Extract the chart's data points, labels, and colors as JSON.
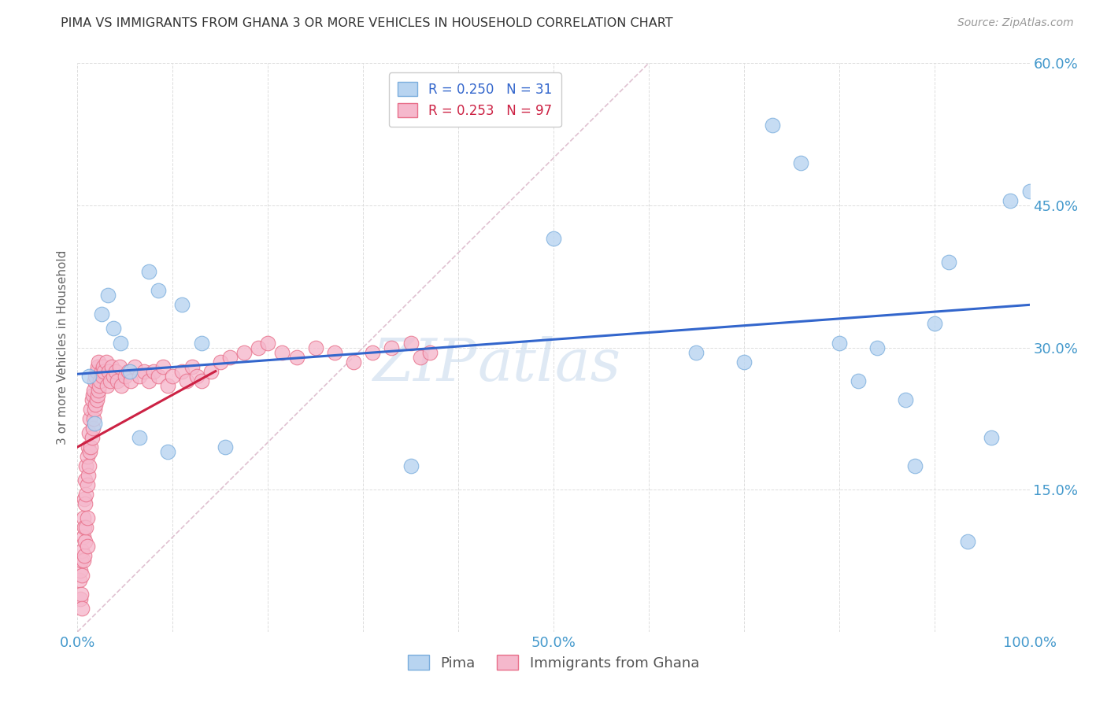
{
  "title": "PIMA VS IMMIGRANTS FROM GHANA 3 OR MORE VEHICLES IN HOUSEHOLD CORRELATION CHART",
  "source": "Source: ZipAtlas.com",
  "ylabel": "3 or more Vehicles in Household",
  "xlim": [
    0.0,
    1.0
  ],
  "ylim": [
    0.0,
    0.6
  ],
  "xticks": [
    0.0,
    0.1,
    0.2,
    0.3,
    0.4,
    0.5,
    0.6,
    0.7,
    0.8,
    0.9,
    1.0
  ],
  "xtick_labels": [
    "0.0%",
    "",
    "",
    "",
    "",
    "50.0%",
    "",
    "",
    "",
    "",
    "100.0%"
  ],
  "yticks": [
    0.0,
    0.15,
    0.3,
    0.45,
    0.6
  ],
  "ytick_labels": [
    "",
    "15.0%",
    "30.0%",
    "45.0%",
    "60.0%"
  ],
  "pima_color": "#b8d4f0",
  "ghana_color": "#f5b8cc",
  "pima_edge_color": "#7baedd",
  "ghana_edge_color": "#e8708a",
  "trendline_pima_color": "#3366cc",
  "trendline_ghana_color": "#cc2244",
  "diagonal_color": "#ddbbcc",
  "grid_color": "#dddddd",
  "tick_label_color": "#4499cc",
  "legend_pima_label": "R = 0.250   N = 31",
  "legend_ghana_label": "R = 0.253   N = 97",
  "legend_bottom_pima": "Pima",
  "legend_bottom_ghana": "Immigrants from Ghana",
  "watermark_zip": "ZIP",
  "watermark_atlas": "atlas",
  "pima_x": [
    0.012,
    0.018,
    0.025,
    0.032,
    0.038,
    0.045,
    0.055,
    0.065,
    0.075,
    0.085,
    0.095,
    0.11,
    0.13,
    0.155,
    0.35,
    0.5,
    0.65,
    0.7,
    0.73,
    0.76,
    0.8,
    0.82,
    0.84,
    0.87,
    0.88,
    0.9,
    0.915,
    0.935,
    0.96,
    0.98,
    1.0
  ],
  "pima_y": [
    0.27,
    0.22,
    0.335,
    0.355,
    0.32,
    0.305,
    0.275,
    0.205,
    0.38,
    0.36,
    0.19,
    0.345,
    0.305,
    0.195,
    0.175,
    0.415,
    0.295,
    0.285,
    0.535,
    0.495,
    0.305,
    0.265,
    0.3,
    0.245,
    0.175,
    0.325,
    0.39,
    0.095,
    0.205,
    0.455,
    0.465
  ],
  "ghana_x": [
    0.002,
    0.003,
    0.003,
    0.004,
    0.004,
    0.005,
    0.005,
    0.005,
    0.006,
    0.006,
    0.006,
    0.007,
    0.007,
    0.007,
    0.008,
    0.008,
    0.008,
    0.009,
    0.009,
    0.009,
    0.01,
    0.01,
    0.01,
    0.01,
    0.011,
    0.011,
    0.012,
    0.012,
    0.013,
    0.013,
    0.014,
    0.014,
    0.015,
    0.015,
    0.016,
    0.016,
    0.017,
    0.017,
    0.018,
    0.018,
    0.019,
    0.019,
    0.02,
    0.02,
    0.021,
    0.021,
    0.022,
    0.022,
    0.023,
    0.024,
    0.025,
    0.026,
    0.027,
    0.028,
    0.03,
    0.031,
    0.033,
    0.034,
    0.036,
    0.038,
    0.04,
    0.042,
    0.044,
    0.046,
    0.05,
    0.053,
    0.056,
    0.06,
    0.065,
    0.07,
    0.075,
    0.08,
    0.085,
    0.09,
    0.095,
    0.1,
    0.11,
    0.115,
    0.12,
    0.125,
    0.13,
    0.14,
    0.15,
    0.16,
    0.175,
    0.19,
    0.2,
    0.215,
    0.23,
    0.25,
    0.27,
    0.29,
    0.31,
    0.33,
    0.35,
    0.36,
    0.37
  ],
  "ghana_y": [
    0.055,
    0.065,
    0.035,
    0.04,
    0.075,
    0.085,
    0.06,
    0.025,
    0.1,
    0.12,
    0.075,
    0.14,
    0.11,
    0.08,
    0.16,
    0.135,
    0.095,
    0.175,
    0.145,
    0.11,
    0.185,
    0.155,
    0.12,
    0.09,
    0.195,
    0.165,
    0.21,
    0.175,
    0.225,
    0.19,
    0.235,
    0.195,
    0.245,
    0.205,
    0.25,
    0.215,
    0.255,
    0.225,
    0.265,
    0.235,
    0.27,
    0.24,
    0.275,
    0.245,
    0.28,
    0.25,
    0.285,
    0.255,
    0.26,
    0.265,
    0.275,
    0.27,
    0.28,
    0.275,
    0.285,
    0.26,
    0.275,
    0.265,
    0.28,
    0.27,
    0.275,
    0.265,
    0.28,
    0.26,
    0.27,
    0.275,
    0.265,
    0.28,
    0.27,
    0.275,
    0.265,
    0.275,
    0.27,
    0.28,
    0.26,
    0.27,
    0.275,
    0.265,
    0.28,
    0.27,
    0.265,
    0.275,
    0.285,
    0.29,
    0.295,
    0.3,
    0.305,
    0.295,
    0.29,
    0.3,
    0.295,
    0.285,
    0.295,
    0.3,
    0.305,
    0.29,
    0.295
  ]
}
